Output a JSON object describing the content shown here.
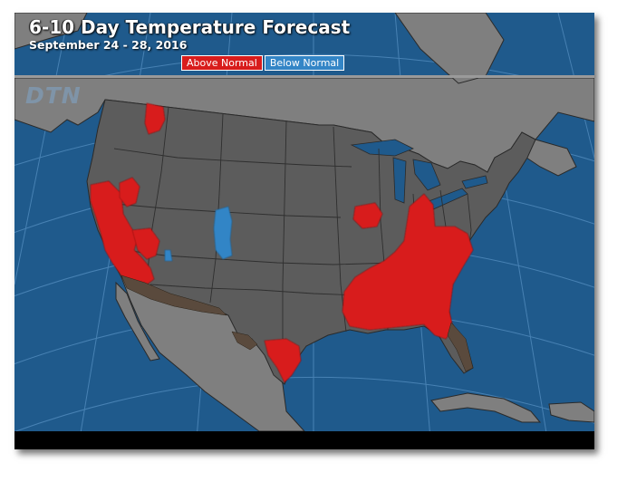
{
  "title": "6-10 Day Temperature Forecast",
  "subtitle": "September 24 - 28, 2016",
  "legend": [
    {
      "label": "Above Normal",
      "color": "#d81c1c"
    },
    {
      "label": "Below Normal",
      "color": "#3385c6"
    }
  ],
  "logo": "DTN",
  "colors": {
    "ocean": "#1f5a8c",
    "land_us": "#5c5c5c",
    "land_other": "#7f7f7f",
    "above_normal": "#d81c1c",
    "below_normal": "#3385c6",
    "much_above": "#5a4a3d"
  }
}
